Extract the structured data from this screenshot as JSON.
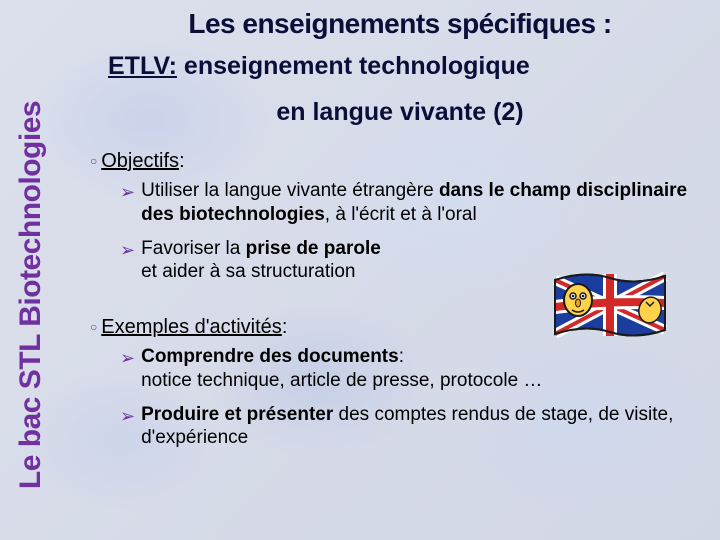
{
  "title": "Les enseignements spécifiques :",
  "subtitle_prefix": "ETLV:",
  "subtitle_rest": " enseignement  technologique",
  "subtitle2": "en  langue  vivante  (2)",
  "sidebar": "Le bac STL Biotechnologies",
  "sections": {
    "objectifs": {
      "head": "Objectifs",
      "items": [
        "Utiliser la langue vivante étrangère <b>dans le champ disciplinaire des biotechnologies</b>, à l'écrit et à l'oral",
        "Favoriser la <b>prise de parole</b><br>et aider à sa structuration"
      ]
    },
    "exemples": {
      "head": "Exemples d'activités",
      "items": [
        "<b>Comprendre des documents</b>:<br>notice technique, article de presse, protocole …",
        "<b>Produire et présenter</b> des comptes rendus de stage, de visite, d'expérience"
      ]
    }
  },
  "colors": {
    "accent": "#7030a0",
    "title": "#0a0f3a"
  },
  "flag": {
    "face": "#ffd24a",
    "outline": "#1a1a1a",
    "blue": "#1a3d9e",
    "red": "#d22828",
    "white": "#ffffff"
  }
}
